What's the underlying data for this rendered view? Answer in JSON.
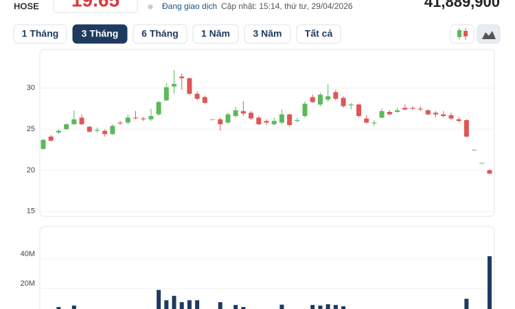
{
  "header": {
    "exchange": "HOSE",
    "price": "19.65",
    "status": "Đang giao dịch",
    "updated": "Cập nhật: 15:14, thứ tư, 29/04/2026",
    "volume": "41,889,900"
  },
  "ranges": [
    "1 Tháng",
    "3 Tháng",
    "6 Tháng",
    "1 Năm",
    "3 Năm",
    "Tất cả"
  ],
  "chart_data": {
    "type": "candlestick",
    "up_color": "#5cb85c",
    "down_color": "#e05656",
    "open": [
      22.6,
      24.1,
      24.6,
      25.0,
      25.6,
      26.4,
      25.3,
      24.8,
      24.8,
      24.4,
      25.8,
      25.8,
      26.4,
      26.3,
      26.2,
      26.8,
      28.5,
      30.2,
      31.4,
      31.2,
      29.3,
      28.9,
      26.2,
      26.2,
      25.8,
      26.6,
      27.2,
      27.0,
      26.4,
      26.0,
      25.6,
      25.8,
      26.8,
      26.0,
      26.6,
      28.9,
      28.0,
      28.6,
      29.5,
      28.8,
      27.9,
      28.0,
      26.3,
      25.7,
      26.4,
      27.1,
      27.1,
      27.6,
      27.6,
      27.5,
      27.3,
      27.0,
      26.8,
      26.7,
      26.2,
      26.1,
      22.5,
      20.9,
      20.0
    ],
    "high": [
      23.8,
      24.3,
      25.0,
      25.7,
      27.3,
      26.8,
      25.4,
      25.2,
      25.0,
      25.6,
      26.0,
      26.8,
      27.2,
      26.5,
      27.5,
      28.4,
      30.6,
      32.2,
      31.8,
      31.3,
      29.6,
      29.1,
      26.2,
      26.4,
      27.0,
      27.7,
      28.4,
      27.2,
      26.6,
      26.2,
      26.4,
      27.4,
      26.9,
      26.4,
      28.4,
      29.2,
      29.4,
      30.5,
      29.8,
      29.0,
      28.2,
      28.1,
      26.7,
      26.1,
      27.5,
      27.3,
      27.6,
      28.0,
      27.8,
      27.8,
      27.4,
      27.2,
      27.2,
      27.0,
      26.5,
      26.2,
      22.5,
      20.9,
      20.2
    ],
    "low": [
      22.5,
      23.5,
      24.4,
      24.9,
      25.5,
      25.5,
      24.6,
      24.6,
      24.1,
      24.3,
      25.5,
      25.6,
      26.2,
      26.0,
      26.0,
      26.6,
      28.4,
      29.3,
      29.8,
      29.2,
      28.5,
      28.1,
      26.2,
      24.8,
      25.7,
      26.4,
      26.6,
      26.1,
      25.5,
      25.5,
      25.5,
      25.6,
      25.3,
      25.8,
      26.4,
      28.2,
      27.8,
      28.3,
      28.5,
      27.6,
      27.4,
      26.4,
      25.7,
      25.4,
      26.3,
      26.7,
      27.0,
      27.3,
      27.3,
      27.2,
      26.7,
      26.4,
      26.4,
      26.1,
      25.8,
      24.0,
      22.5,
      20.9,
      19.5
    ],
    "close": [
      23.7,
      23.6,
      24.8,
      25.6,
      26.2,
      25.6,
      24.7,
      24.9,
      24.4,
      25.4,
      25.7,
      26.4,
      26.3,
      26.2,
      26.6,
      28.3,
      30.1,
      30.5,
      31.2,
      29.3,
      28.7,
      28.2,
      26.2,
      25.6,
      26.8,
      27.3,
      26.9,
      26.3,
      25.6,
      25.8,
      26.0,
      26.8,
      25.5,
      26.1,
      28.1,
      28.3,
      29.2,
      29.0,
      28.7,
      27.8,
      28.0,
      26.6,
      25.8,
      25.8,
      27.2,
      26.8,
      27.3,
      27.4,
      27.5,
      27.4,
      26.8,
      26.8,
      26.6,
      26.3,
      26.0,
      24.1,
      22.5,
      20.9,
      19.6
    ],
    "ylim": [
      14.4,
      34.7
    ],
    "yticks": [
      15,
      20,
      25,
      30
    ],
    "volume": {
      "color": "#1f3a5f",
      "ylim": [
        0,
        62000000
      ],
      "yticks": [
        {
          "value": 20000000,
          "label": "20M"
        },
        {
          "value": 40000000,
          "label": "40M"
        }
      ],
      "values": [
        4500000,
        4000000,
        7400000,
        5000000,
        8400000,
        5000000,
        3500000,
        3000000,
        3500000,
        4000000,
        3000000,
        4000000,
        3500000,
        3000000,
        4500000,
        19000000,
        12000000,
        15000000,
        10700000,
        12000000,
        12000000,
        6000000,
        3000000,
        10700000,
        5000000,
        8800000,
        7400000,
        5000000,
        4000000,
        4000000,
        4500000,
        9000000,
        5000000,
        4000000,
        5000000,
        8800000,
        8400000,
        9300000,
        8800000,
        7900000,
        5000000,
        6000000,
        4000000,
        3500000,
        5000000,
        3000000,
        3000000,
        3000000,
        3000000,
        3000000,
        4000000,
        4000000,
        4000000,
        4000000,
        5000000,
        13000000,
        3000000,
        3000000,
        41900000
      ]
    }
  }
}
